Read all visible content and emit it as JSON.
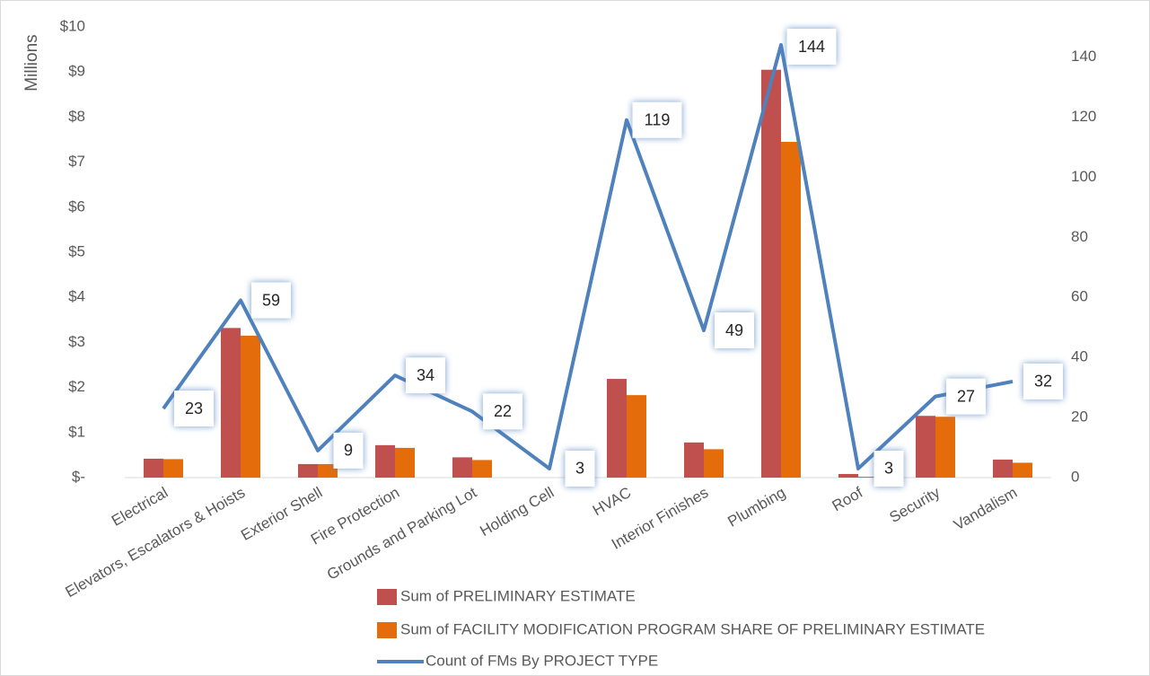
{
  "chart_data": {
    "type": "bar",
    "y_axis_label": "Millions",
    "categories": [
      "Electrical",
      "Elevators, Escalators & Hoists",
      "Exterior Shell",
      "Fire Protection",
      "Grounds and Parking Lot",
      "Holding Cell",
      "HVAC",
      "Interior Finishes",
      "Plumbing",
      "Roof",
      "Security",
      "Vandalism"
    ],
    "series": [
      {
        "name": "Sum of PRELIMINARY ESTIMATE",
        "type": "bar",
        "color": "#c0504d",
        "values": [
          0.42,
          3.32,
          0.3,
          0.72,
          0.45,
          0,
          2.19,
          0.78,
          9.05,
          0.08,
          1.37,
          0.4
        ]
      },
      {
        "name": "Sum of FACILITY MODIFICATION PROGRAM SHARE OF PRELIMINARY ESTIMATE",
        "type": "bar",
        "color": "#e46c0a",
        "values": [
          0.41,
          3.15,
          0.3,
          0.66,
          0.39,
          0,
          1.83,
          0.63,
          7.45,
          0.02,
          1.35,
          0.33
        ]
      },
      {
        "name": "Count of FMs By PROJECT TYPE",
        "type": "line",
        "axis": "y2",
        "color": "#4f81bd",
        "values": [
          23,
          59,
          9,
          34,
          22,
          3,
          119,
          49,
          144,
          3,
          27,
          32
        ]
      }
    ],
    "ylim": [
      0,
      10
    ],
    "yticks": [
      {
        "value": 0,
        "label": "$-"
      },
      {
        "value": 1,
        "label": "$1"
      },
      {
        "value": 2,
        "label": "$2"
      },
      {
        "value": 3,
        "label": "$3"
      },
      {
        "value": 4,
        "label": "$4"
      },
      {
        "value": 5,
        "label": "$5"
      },
      {
        "value": 6,
        "label": "$6"
      },
      {
        "value": 7,
        "label": "$7"
      },
      {
        "value": 8,
        "label": "$8"
      },
      {
        "value": 9,
        "label": "$9"
      },
      {
        "value": 10,
        "label": "$10"
      }
    ],
    "y2lim": [
      0,
      150
    ],
    "y2ticks": [
      0,
      20,
      40,
      60,
      80,
      100,
      120,
      140
    ],
    "grid": false,
    "legend": "bottom"
  }
}
